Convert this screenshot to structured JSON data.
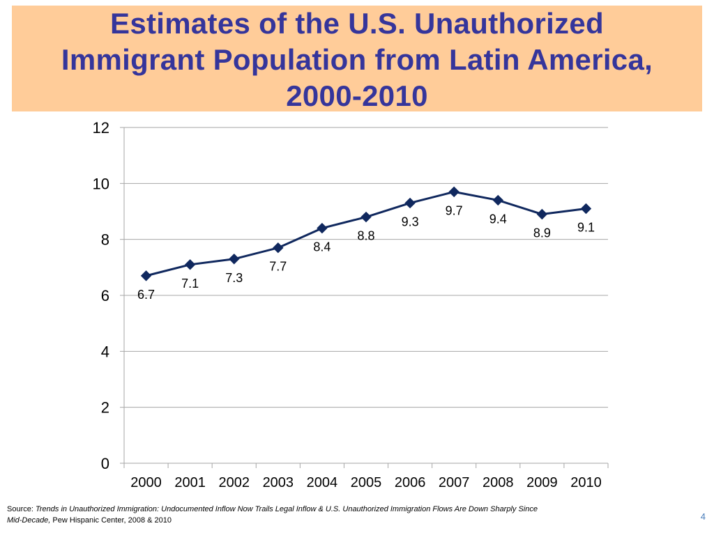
{
  "slide": {
    "title_box_color": "#FFCC99",
    "title_color": "#35359B",
    "page_number": "4",
    "page_number_color": "#4A7EBB"
  },
  "chart_data": {
    "type": "line",
    "title_lines": [
      "Estimates of the U.S. Unauthorized",
      "Immigrant Population from Latin America,",
      "2000-2010"
    ],
    "xlabel": "",
    "ylabel": "",
    "categories": [
      "2000",
      "2001",
      "2002",
      "2003",
      "2004",
      "2005",
      "2006",
      "2007",
      "2008",
      "2009",
      "2010"
    ],
    "series": [
      {
        "values": [
          6.7,
          7.1,
          7.3,
          7.7,
          8.4,
          8.8,
          9.3,
          9.7,
          9.4,
          8.9,
          9.1
        ],
        "color": "#10285E",
        "marker": "diamond",
        "data_labels": "below"
      }
    ],
    "ylim": [
      0,
      12
    ],
    "yticks": [
      0,
      2,
      4,
      6,
      8,
      10,
      12
    ],
    "grid": true,
    "grid_color": "#A6A6A6",
    "legend": "none"
  },
  "source": {
    "label": "Source:",
    "title_line1": "Trends in Unauthorized Immigration: Undocumented Inflow Now Trails Legal Inflow & U.S. Unauthorized Immigration Flows Are Down Sharply Since",
    "title_line2": "Mid-Decade,",
    "publisher": "Pew Hispanic Center, 2008 & 2010"
  }
}
